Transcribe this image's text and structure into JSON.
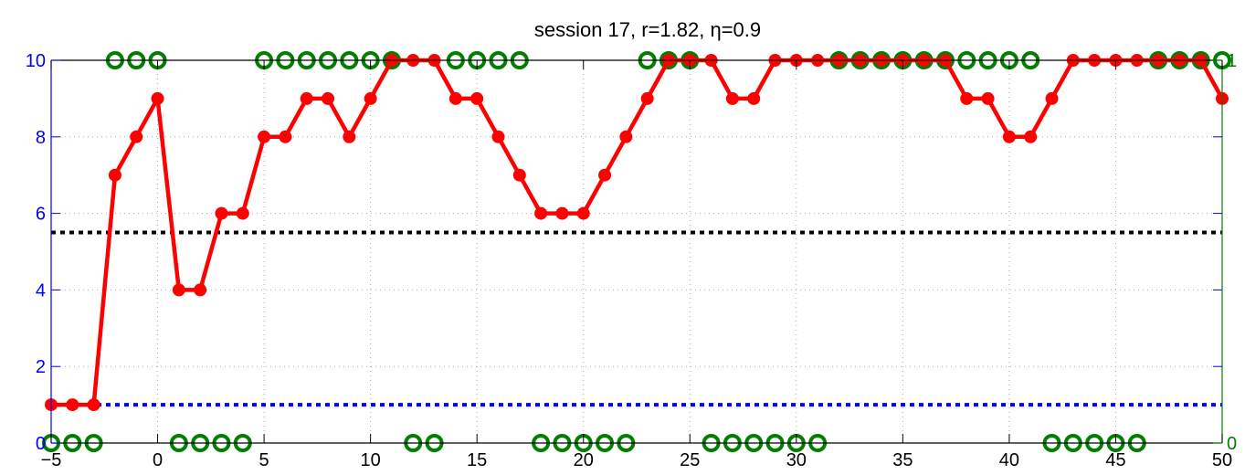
{
  "chart_data": {
    "type": "line",
    "title": "session 17, r=1.82, η=0.9",
    "xlim": [
      -5,
      50
    ],
    "ylim_left": [
      0,
      10
    ],
    "ylim_right": [
      0,
      1
    ],
    "grid": true,
    "x_ticks": [
      -5,
      0,
      5,
      10,
      15,
      20,
      25,
      30,
      35,
      40,
      45,
      50
    ],
    "x_tick_labels": [
      "−5",
      "0",
      "5",
      "10",
      "15",
      "20",
      "25",
      "30",
      "35",
      "40",
      "45",
      "50"
    ],
    "y_left_ticks": [
      0,
      2,
      4,
      6,
      8,
      10
    ],
    "y_left_tick_labels": [
      "0",
      "2",
      "4",
      "6",
      "8",
      "10"
    ],
    "y_right_ticks": [
      0,
      1
    ],
    "y_right_tick_labels": [
      "0",
      "1"
    ],
    "colors": {
      "main_series": "#ff0000",
      "binary_series": "#007f00",
      "upper_reference": "#000000",
      "lower_reference": "#0000ff",
      "left_axis": "#0000ff",
      "right_axis": "#007f00",
      "bottom_axis": "#000000"
    },
    "series": [
      {
        "axis": "left",
        "style": "line-with-filled-markers",
        "x": [
          -5,
          -4,
          -3,
          -2,
          -1,
          0,
          1,
          2,
          3,
          4,
          5,
          6,
          7,
          8,
          9,
          10,
          11,
          12,
          13,
          14,
          15,
          16,
          17,
          18,
          19,
          20,
          21,
          22,
          23,
          24,
          25,
          26,
          27,
          28,
          29,
          30,
          31,
          32,
          33,
          34,
          35,
          36,
          37,
          38,
          39,
          40,
          41,
          42,
          43,
          44,
          45,
          46,
          47,
          48,
          49,
          50
        ],
        "values": [
          1,
          1,
          1,
          7,
          8,
          9,
          4,
          4,
          6,
          6,
          8,
          8,
          9,
          9,
          8,
          9,
          10,
          10,
          10,
          9,
          9,
          8,
          7,
          6,
          6,
          6,
          7,
          8,
          9,
          10,
          10,
          10,
          9,
          9,
          10,
          10,
          10,
          10,
          10,
          10,
          10,
          10,
          10,
          9,
          9,
          8,
          8,
          9,
          10,
          10,
          10,
          10,
          10,
          10,
          10,
          9
        ]
      },
      {
        "axis": "right",
        "style": "open-circle-markers",
        "x": [
          -5,
          -4,
          -3,
          -2,
          -1,
          0,
          1,
          2,
          3,
          4,
          5,
          6,
          7,
          8,
          9,
          10,
          11,
          12,
          13,
          14,
          15,
          16,
          17,
          18,
          19,
          20,
          21,
          22,
          23,
          24,
          25,
          26,
          27,
          28,
          29,
          30,
          31,
          32,
          33,
          34,
          35,
          36,
          37,
          38,
          39,
          40,
          41,
          42,
          43,
          44,
          45,
          46,
          47,
          48,
          49,
          50
        ],
        "values": [
          0,
          0,
          0,
          1,
          1,
          1,
          0,
          0,
          0,
          0,
          1,
          1,
          1,
          1,
          1,
          1,
          1,
          0,
          0,
          1,
          1,
          1,
          1,
          0,
          0,
          0,
          0,
          0,
          1,
          1,
          1,
          0,
          0,
          0,
          0,
          0,
          0,
          1,
          1,
          1,
          1,
          1,
          1,
          1,
          1,
          1,
          1,
          0,
          0,
          0,
          0,
          0,
          1,
          1,
          1,
          1
        ]
      }
    ],
    "reference_lines": [
      {
        "axis": "left",
        "y": 5.5,
        "style": "dotted",
        "color": "#000000"
      },
      {
        "axis": "left",
        "y": 1,
        "style": "dotted",
        "color": "#0000ff"
      }
    ]
  }
}
